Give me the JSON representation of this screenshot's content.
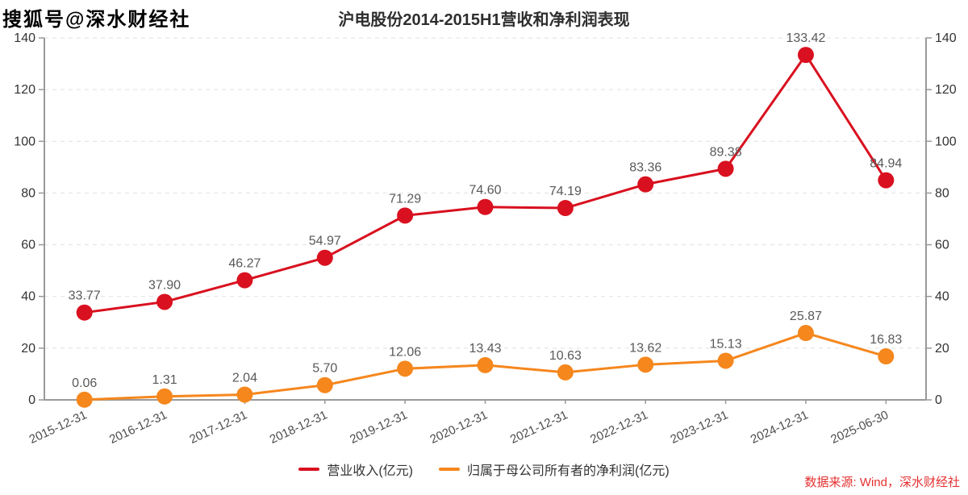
{
  "watermark": "搜狐号@深水财经社",
  "title": "沪电股份2014-2015H1营收和净利润表现",
  "source_note": "数据来源: Wind，深水财经社",
  "legend": [
    {
      "label": "营业收入(亿元)",
      "color": "#d9101f"
    },
    {
      "label": "归属于母公司所有者的净利润(亿元)",
      "color": "#f5871d"
    }
  ],
  "colors": {
    "revenue_line": "#d9101f",
    "net_profit_line": "#f5871d",
    "grid_line": "#e1e1e1",
    "axis_line": "#999999",
    "y_tick_label": "#333333",
    "x_tick_label": "#4d4d4d",
    "data_label": "#595959",
    "source_text": "#e63030"
  },
  "chart_data": {
    "type": "line",
    "title": "沪电股份2014-2015H1营收和净利润表现",
    "categories": [
      "2015-12-31",
      "2016-12-31",
      "2017-12-31",
      "2018-12-31",
      "2019-12-31",
      "2020-12-31",
      "2021-12-31",
      "2022-12-31",
      "2023-12-31",
      "2024-12-31",
      "2025-06-30"
    ],
    "series": [
      {
        "name": "营业收入(亿元)",
        "color": "#d9101f",
        "values": [
          33.77,
          37.9,
          46.27,
          54.97,
          71.29,
          74.6,
          74.19,
          83.36,
          89.38,
          133.42,
          84.94
        ]
      },
      {
        "name": "归属于母公司所有者的净利润(亿元)",
        "color": "#f5871d",
        "values": [
          0.06,
          1.31,
          2.04,
          5.7,
          12.06,
          13.43,
          10.63,
          13.62,
          15.13,
          25.87,
          16.83
        ]
      }
    ],
    "xlabel": "",
    "ylabel": "",
    "ylim": [
      0,
      140
    ],
    "yticks": [
      0,
      20,
      40,
      60,
      80,
      100,
      120,
      140
    ],
    "grid": "horizontal-dashed",
    "dual_y_axis": true,
    "data_labels": "two-decimals",
    "legend_position": "bottom",
    "x_label_rotation": -25
  }
}
